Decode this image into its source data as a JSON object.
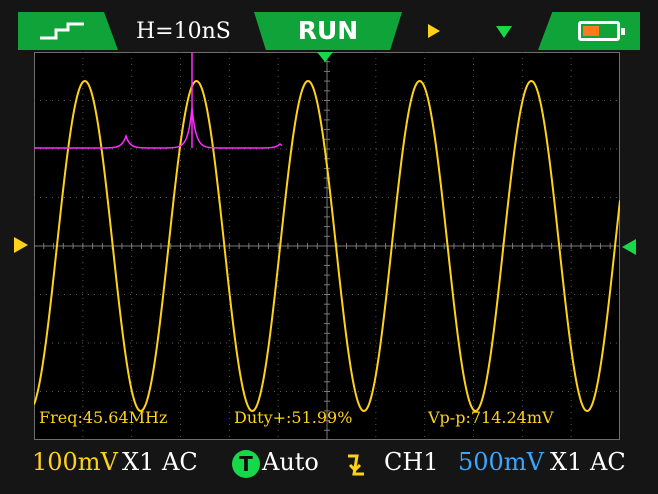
{
  "header": {
    "mode_icon": "step-wave-icon",
    "timebase": "H=10nS",
    "run_state": "RUN",
    "trigger_position_icon": "trigger-position-arrow-icon",
    "trigger_icon": "trigger-down-arrow-icon",
    "battery_icon": "battery-icon",
    "battery_level": 0.5,
    "colors": {
      "green": "#10a33a",
      "yellow": "#ffd21a",
      "marker_green": "#16d94a",
      "orange": "#ff7b1a"
    }
  },
  "measurements": {
    "freq": "Freq:45.64MHz",
    "duty": "Duty+:51.99%",
    "vpp": "Vp-p:714.24mV"
  },
  "waveform": {
    "ch1_color": "#ffd21a",
    "fft_color": "#ff2cff",
    "periods_on_screen": 5.25
  },
  "footer": {
    "ch1_scale": "100mV",
    "ch1_probe": "X1 AC",
    "trigger_mode_icon": "T",
    "trigger_mode": "Auto",
    "trigger_edge_icon": "falling-edge-icon",
    "trigger_source": "CH1",
    "ch2_scale": "500mV",
    "ch2_probe": "X1 AC",
    "colors": {
      "ch1": "#ffd21a",
      "ch2": "#3aa6ff"
    }
  }
}
